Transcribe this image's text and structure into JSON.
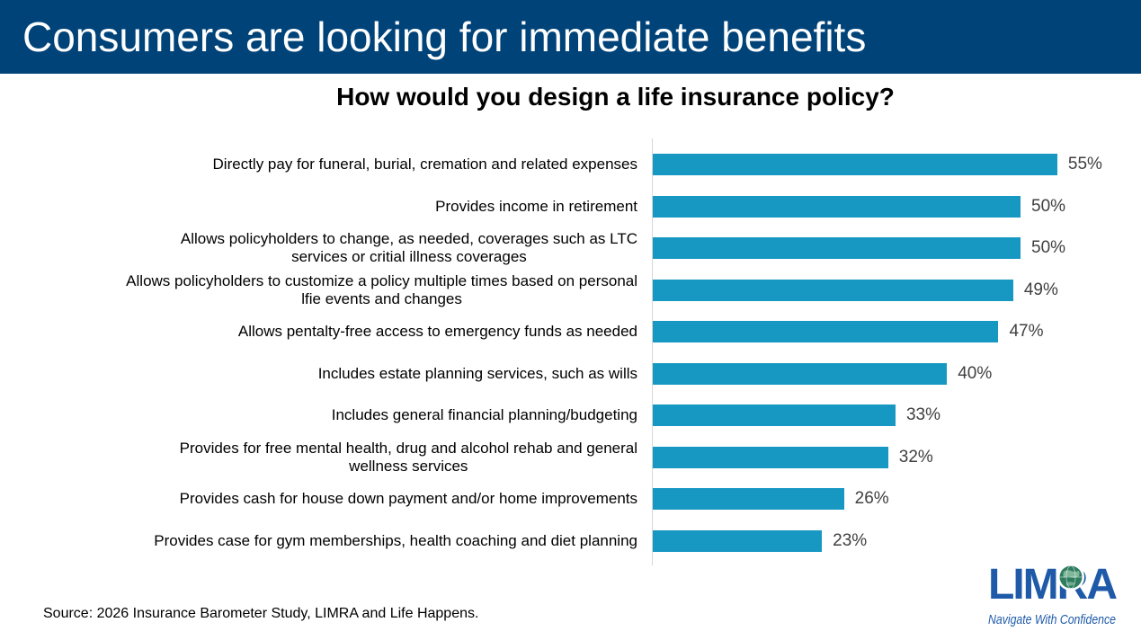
{
  "banner": {
    "title": "Consumers are looking for immediate benefits",
    "bg_color": "#004379",
    "text_color": "#FFFFFF"
  },
  "chart_data": {
    "type": "bar",
    "orientation": "horizontal",
    "title": "How would you design a life insurance policy?",
    "categories": [
      "Directly pay for funeral, burial, cremation and related expenses",
      "Provides income in retirement",
      "Allows policyholders to change, as needed, coverages such as LTC\nservices or critial illness coverages",
      "Allows policyholders to customize a policy multiple times based on personal\nlfie events and changes",
      "Allows pentalty-free access to emergency funds as needed",
      "Includes estate planning services, such as wills",
      "Includes general financial planning/budgeting",
      "Provides for free mental health, drug and alcohol rehab and general\nwellness services",
      "Provides cash for house down payment and/or home improvements",
      "Provides case for gym memberships, health coaching and diet planning"
    ],
    "values": [
      55,
      50,
      50,
      49,
      47,
      40,
      33,
      32,
      26,
      23
    ],
    "value_suffix": "%",
    "xlim": [
      0,
      60
    ],
    "bar_color": "#1798C2",
    "value_label_color": "#404040",
    "axis_line_color": "#D7D7D7",
    "grid": false,
    "legend": false,
    "value_labels_position": "outside-end"
  },
  "footer": {
    "source": "Source: 2026 Insurance Barometer Study, LIMRA and Life Happens.",
    "logo": {
      "brand": "LIMRA",
      "tagline": "Navigate With Confidence",
      "brand_color": "#1F5AA8",
      "globe_color": "#2F7D5F"
    }
  }
}
